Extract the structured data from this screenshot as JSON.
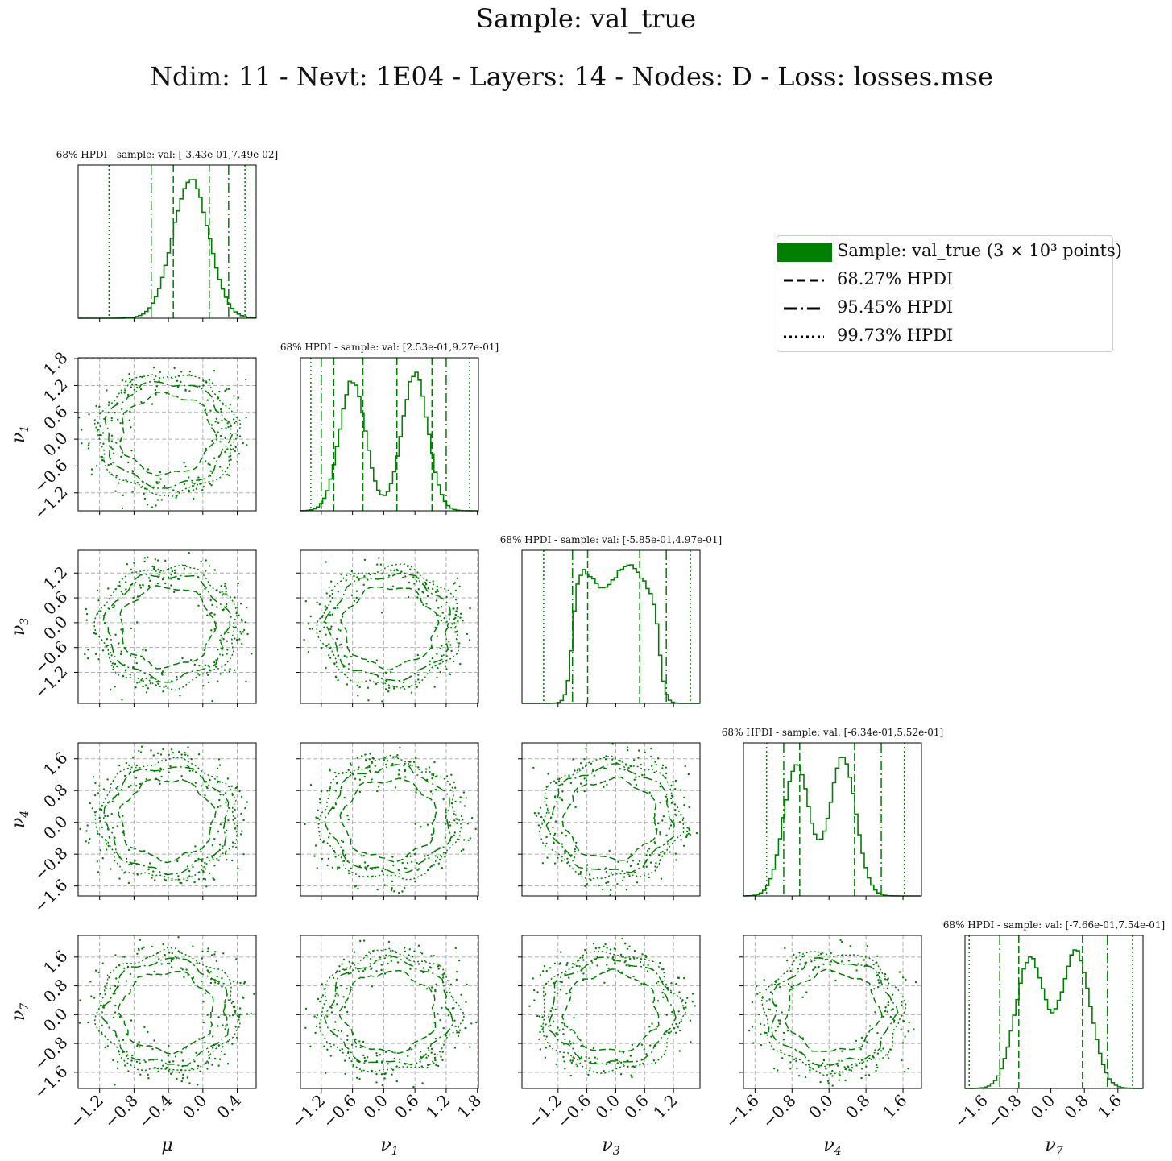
{
  "figure": {
    "title_line1": "Sample:  val_true",
    "title_line2": "Ndim:  11 - Nevt:  1E04 - Layers:  14 - Nodes:  D - Loss:  losses.mse"
  },
  "legend": {
    "items": [
      {
        "label": "Sample:  val_true (3 × 10³ points)",
        "style": "patch"
      },
      {
        "label": "68.27% HPDI",
        "style": "dashed"
      },
      {
        "label": "95.45% HPDI",
        "style": "dashdot"
      },
      {
        "label": "99.73% HPDI",
        "style": "dotted"
      }
    ]
  },
  "colors": {
    "series": "#008000",
    "grid": "#b0b0b0",
    "axis": "#000000"
  },
  "chart_data": {
    "type": "corner",
    "series": [
      {
        "name": "Sample:  val_true",
        "points": 3000
      }
    ],
    "parameters": [
      {
        "key": "mu",
        "label": "μ",
        "sub": "",
        "range": [
          -1.45,
          0.62
        ],
        "ticks": [
          -1.2,
          -0.8,
          -0.4,
          0.0,
          0.4
        ],
        "tick_labels": [
          "−1.2",
          "−0.8",
          "−0.4",
          "0.0",
          "0.4"
        ],
        "hpdi_title": "68% HPDI - sample: val: [-3.43e-01,7.49e-02]",
        "hpdi68": [
          -0.343,
          0.0749
        ],
        "hpdi95": [
          -0.6,
          0.3
        ],
        "hpdi997": [
          -1.09,
          0.49
        ],
        "shape": "unimodal",
        "center": -0.14,
        "sd": 0.21
      },
      {
        "key": "nu1",
        "label": "ν",
        "sub": "1",
        "range": [
          -1.6,
          1.82
        ],
        "ticks": [
          -1.2,
          -0.6,
          0.0,
          0.6,
          1.2,
          1.8
        ],
        "tick_labels": [
          "−1.2",
          "−0.6",
          "0.0",
          "0.6",
          "1.2",
          "1.8"
        ],
        "hpdi_title": "68% HPDI - sample: val: [2.53e-01,9.27e-01]",
        "hpdi68": [
          -0.96,
          -0.4,
          0.253,
          0.927
        ],
        "hpdi95": [
          -1.2,
          1.2
        ],
        "hpdi997": [
          -1.4,
          1.65
        ],
        "shape": "bimodal",
        "modes": [
          -0.6,
          0.6
        ],
        "sd": 0.25
      },
      {
        "key": "nu3",
        "label": "ν",
        "sub": "3",
        "range": [
          -1.95,
          1.75
        ],
        "ticks": [
          -1.2,
          -0.6,
          0.0,
          0.6,
          1.2
        ],
        "tick_labels": [
          "−1.2",
          "−0.6",
          "0.0",
          "0.6",
          "1.2"
        ],
        "hpdi_title": "68% HPDI - sample: val: [-5.85e-01,4.97e-01]",
        "hpdi68": [
          -0.585,
          0.497
        ],
        "hpdi95": [
          -0.9,
          1.05
        ],
        "hpdi997": [
          -1.5,
          1.55
        ],
        "shape": "plateau"
      },
      {
        "key": "nu4",
        "label": "ν",
        "sub": "4",
        "range": [
          -1.85,
          2.0
        ],
        "ticks": [
          -1.6,
          -0.8,
          0.0,
          0.8,
          1.6
        ],
        "tick_labels": [
          "−1.6",
          "−0.8",
          "0.0",
          "0.8",
          "1.6"
        ],
        "hpdi_title": "68% HPDI - sample: val: [-6.34e-01,5.52e-01]",
        "hpdi68": [
          -0.634,
          0.552
        ],
        "hpdi95": [
          -0.98,
          1.13
        ],
        "hpdi997": [
          -1.35,
          1.63
        ],
        "shape": "bimodal",
        "modes": [
          -0.7,
          0.3
        ],
        "sd": 0.28
      },
      {
        "key": "nu7",
        "label": "ν",
        "sub": "7",
        "range": [
          -2.05,
          2.2
        ],
        "ticks": [
          -1.6,
          -0.8,
          0.0,
          0.8,
          1.6
        ],
        "tick_labels": [
          "−1.6",
          "−0.8",
          "0.0",
          "0.8",
          "1.6"
        ],
        "hpdi_title": "68% HPDI - sample: val: [-7.66e-01,7.54e-01]",
        "hpdi68": [
          -0.766,
          0.754
        ],
        "hpdi95": [
          -1.22,
          1.35
        ],
        "hpdi997": [
          -1.95,
          1.95
        ],
        "shape": "bimodal",
        "modes": [
          -0.5,
          0.6
        ],
        "sd": 0.35
      }
    ],
    "contour_levels": [
      "68.27% HPDI",
      "95.45% HPDI",
      "99.73% HPDI"
    ],
    "grid": true,
    "legend_position": "upper-right"
  }
}
